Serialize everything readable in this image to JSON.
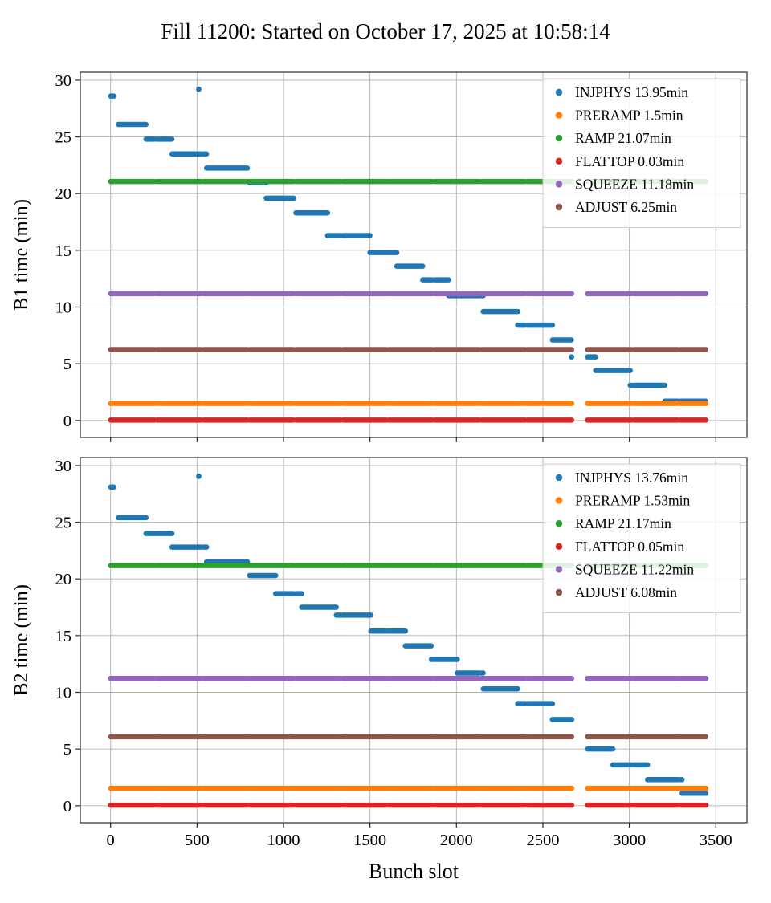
{
  "title": "Fill 11200: Started on October 17, 2025 at 10:58:14",
  "xlabel": "Bunch slot",
  "bunch_slot_segments": [
    [
      -20,
      255
    ],
    [
      268,
      523
    ],
    [
      536,
      791
    ],
    [
      804,
      1059
    ],
    [
      1072,
      1327
    ],
    [
      1340,
      1595
    ],
    [
      1608,
      1863
    ],
    [
      1876,
      2131
    ],
    [
      2144,
      2399
    ],
    [
      2412,
      2667
    ],
    [
      2758,
      3013
    ],
    [
      3026,
      3281
    ],
    [
      3294,
      3443
    ]
  ],
  "chart_data": [
    {
      "type": "scatter",
      "ylabel": "B1 time (min)",
      "xlim": [
        -175,
        3680
      ],
      "ylim": [
        -1.5,
        30.7
      ],
      "xticks": [
        0,
        500,
        1000,
        1500,
        2000,
        2500,
        3000,
        3500
      ],
      "yticks": [
        0,
        5,
        10,
        15,
        20,
        25,
        30
      ],
      "show_x_tick_labels": false,
      "grid": true,
      "legend_position": "upper right",
      "series_color": "#1f77b4",
      "legend": [
        {
          "label": "INJPHYS 13.95min",
          "color": "#1f77b4"
        },
        {
          "label": "PRERAMP 1.5min",
          "color": "#ff7f0e"
        },
        {
          "label": "RAMP 21.07min",
          "color": "#2ca02c"
        },
        {
          "label": "FLATTOP 0.03min",
          "color": "#d62728"
        },
        {
          "label": "SQUEEZE 11.18min",
          "color": "#9467bd"
        },
        {
          "label": "ADJUST 6.25min",
          "color": "#8c564b"
        }
      ],
      "hlines": [
        {
          "name": "RAMP",
          "y": 21.07,
          "color": "#2ca02c"
        },
        {
          "name": "SQUEEZE",
          "y": 11.18,
          "color": "#9467bd"
        },
        {
          "name": "ADJUST",
          "y": 6.25,
          "color": "#8c564b"
        },
        {
          "name": "PRERAMP",
          "y": 1.5,
          "color": "#ff7f0e"
        },
        {
          "name": "FLATTOP",
          "y": 0.03,
          "color": "#d62728"
        }
      ],
      "injphys_steps": [
        [
          0,
          18,
          28.6
        ],
        [
          45,
          205,
          26.1
        ],
        [
          205,
          355,
          24.8
        ],
        [
          355,
          555,
          23.5
        ],
        [
          555,
          800,
          22.25
        ],
        [
          795,
          900,
          20.95
        ],
        [
          900,
          1060,
          19.6
        ],
        [
          1060,
          1255,
          18.3
        ],
        [
          1255,
          1500,
          16.3
        ],
        [
          1500,
          1655,
          14.8
        ],
        [
          1655,
          1805,
          13.6
        ],
        [
          1805,
          1955,
          12.4
        ],
        [
          1955,
          2155,
          11.0
        ],
        [
          2155,
          2355,
          9.6
        ],
        [
          2355,
          2555,
          8.4
        ],
        [
          2555,
          2665,
          7.1
        ],
        [
          2665,
          2805,
          5.6
        ],
        [
          2805,
          3005,
          4.4
        ],
        [
          3005,
          3205,
          3.1
        ],
        [
          3205,
          3443,
          1.7
        ]
      ],
      "outlier": {
        "x": 510,
        "y": 29.2
      }
    },
    {
      "type": "scatter",
      "ylabel": "B2 time (min)",
      "xlim": [
        -175,
        3680
      ],
      "ylim": [
        -1.5,
        30.7
      ],
      "xticks": [
        0,
        500,
        1000,
        1500,
        2000,
        2500,
        3000,
        3500
      ],
      "yticks": [
        0,
        5,
        10,
        15,
        20,
        25,
        30
      ],
      "show_x_tick_labels": true,
      "grid": true,
      "legend_position": "upper right",
      "series_color": "#1f77b4",
      "legend": [
        {
          "label": "INJPHYS 13.76min",
          "color": "#1f77b4"
        },
        {
          "label": "PRERAMP 1.53min",
          "color": "#ff7f0e"
        },
        {
          "label": "RAMP 21.17min",
          "color": "#2ca02c"
        },
        {
          "label": "FLATTOP 0.05min",
          "color": "#d62728"
        },
        {
          "label": "SQUEEZE 11.22min",
          "color": "#9467bd"
        },
        {
          "label": "ADJUST 6.08min",
          "color": "#8c564b"
        }
      ],
      "hlines": [
        {
          "name": "RAMP",
          "y": 21.17,
          "color": "#2ca02c"
        },
        {
          "name": "SQUEEZE",
          "y": 11.22,
          "color": "#9467bd"
        },
        {
          "name": "ADJUST",
          "y": 6.08,
          "color": "#8c564b"
        },
        {
          "name": "PRERAMP",
          "y": 1.53,
          "color": "#ff7f0e"
        },
        {
          "name": "FLATTOP",
          "y": 0.05,
          "color": "#d62728"
        }
      ],
      "injphys_steps": [
        [
          0,
          18,
          28.1
        ],
        [
          45,
          205,
          25.4
        ],
        [
          205,
          355,
          24.0
        ],
        [
          355,
          555,
          22.8
        ],
        [
          555,
          800,
          21.5
        ],
        [
          800,
          955,
          20.3
        ],
        [
          955,
          1105,
          18.7
        ],
        [
          1105,
          1305,
          17.5
        ],
        [
          1305,
          1505,
          16.8
        ],
        [
          1505,
          1705,
          15.4
        ],
        [
          1705,
          1855,
          14.1
        ],
        [
          1855,
          2005,
          12.9
        ],
        [
          2005,
          2155,
          11.7
        ],
        [
          2155,
          2355,
          10.3
        ],
        [
          2355,
          2555,
          9.0
        ],
        [
          2555,
          2705,
          7.6
        ],
        [
          2705,
          2905,
          5.0
        ],
        [
          2905,
          3105,
          3.6
        ],
        [
          3105,
          3305,
          2.3
        ],
        [
          3305,
          3443,
          1.1
        ]
      ],
      "outlier": {
        "x": 510,
        "y": 29.05
      }
    }
  ]
}
